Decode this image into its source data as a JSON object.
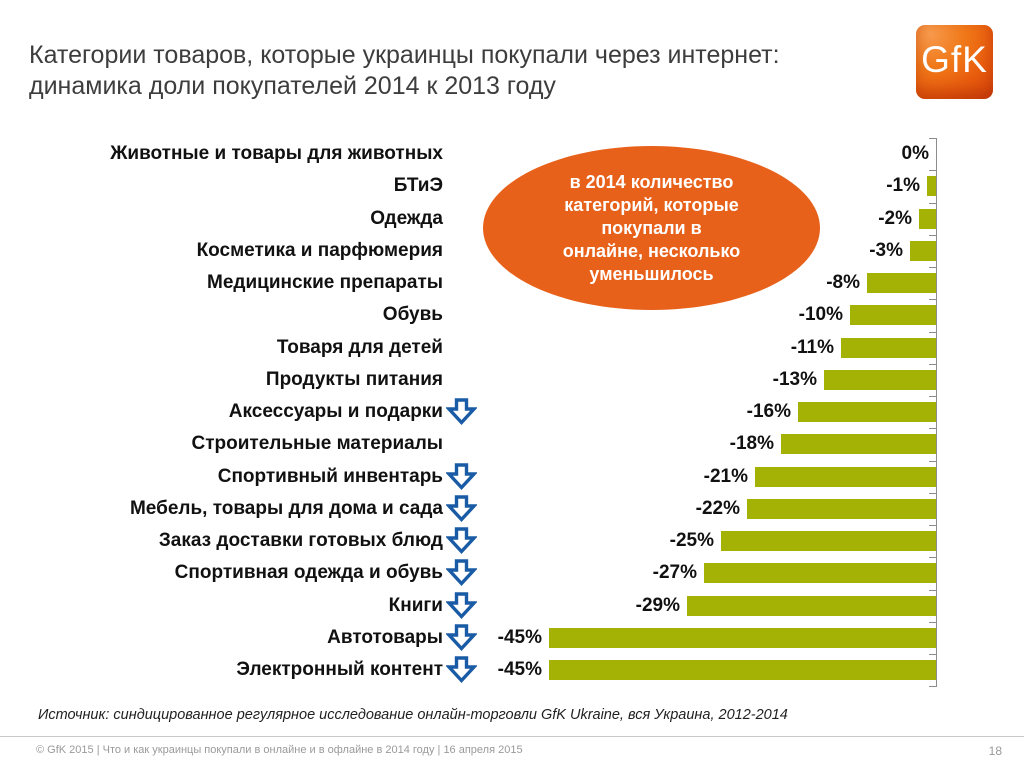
{
  "header": {
    "title_line1": "Категории товаров, которые украинцы покупали через интернет:",
    "title_line2": "динамика доли покупателей 2014 к 2013 году",
    "logo_text": "GfK"
  },
  "callout": {
    "lines": [
      "в 2014 количество",
      "категорий, которые",
      "покупали в",
      "онлайне, несколько",
      "уменьшилось"
    ],
    "fill_color": "#e8611b"
  },
  "chart_data": {
    "type": "bar",
    "orientation": "horizontal-right-baseline",
    "unit": "%",
    "xlim": [
      -50,
      0
    ],
    "grid": false,
    "legend": false,
    "bar_color": "#a4b206",
    "arrow_color": "#1a5ba6",
    "categories": [
      "Животные и товары для животных",
      "БТиЭ",
      "Одежда",
      "Косметика и парфюмерия",
      "Медицинские препараты",
      "Обувь",
      "Товаря для детей",
      "Продукты питания",
      "Аксессуары и подарки",
      "Строительные материалы",
      "Спортивный инвентарь",
      "Мебель, товары для дома и сада",
      "Заказ доставки готовых блюд",
      "Спортивная одежда и обувь",
      "Книги",
      "Автотовары",
      "Электронный контент"
    ],
    "values": [
      0,
      -1,
      -2,
      -3,
      -8,
      -10,
      -11,
      -13,
      -16,
      -18,
      -21,
      -22,
      -25,
      -27,
      -29,
      -45,
      -45
    ],
    "value_labels": [
      "0%",
      "-1%",
      "-2%",
      "-3%",
      "-8%",
      "-10%",
      "-11%",
      "-13%",
      "-16%",
      "-18%",
      "-21%",
      "-22%",
      "-25%",
      "-27%",
      "-29%",
      "-45%",
      "-45%"
    ],
    "decrease_arrow": [
      false,
      false,
      false,
      false,
      false,
      false,
      false,
      false,
      true,
      false,
      true,
      true,
      true,
      true,
      true,
      true,
      true
    ]
  },
  "source": "Источник: синдицированное регулярное исследование онлайн-торговли GfK Ukraine, вся Украина, 2012-2014",
  "footer": {
    "left": "© GfK 2015 | Что и как украинцы покупали в онлайне и в офлайне в 2014 году | 16 апреля 2015",
    "page": "18"
  }
}
